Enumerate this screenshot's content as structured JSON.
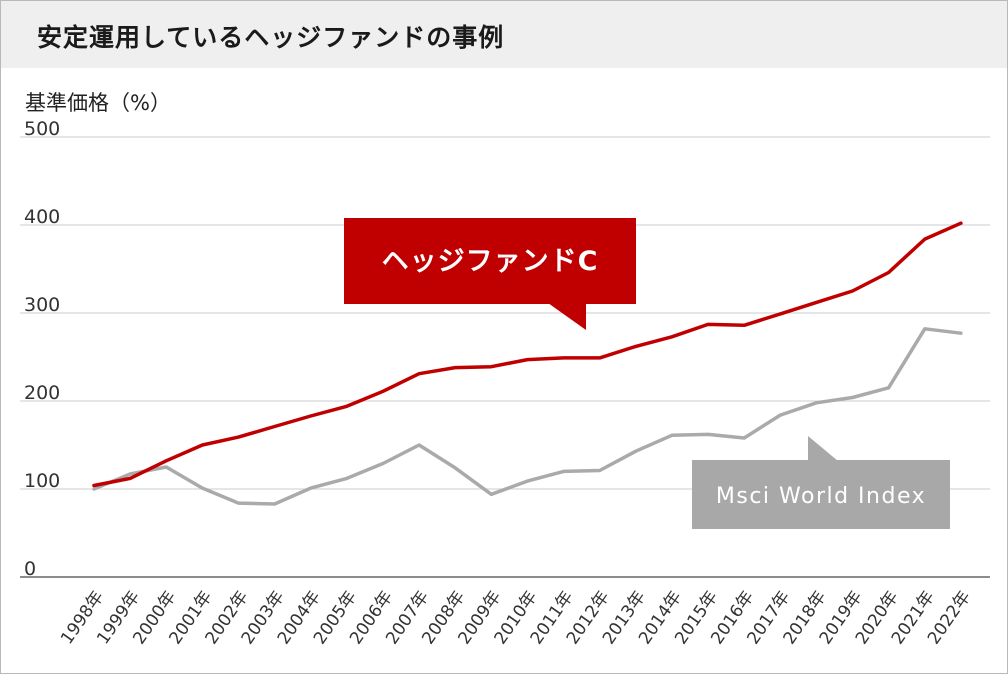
{
  "title": "安定運用しているヘッジファンドの事例",
  "colors": {
    "hedge_fund": "#c00000",
    "msci": "#aaaaaa",
    "grid": "#d6d6d6",
    "title_bg": "#efefef"
  },
  "chart_data": {
    "type": "line",
    "ylabel": "基準価格（%）",
    "xlabel": "",
    "ylim": [
      0,
      500
    ],
    "yticks": [
      "0",
      "100",
      "200",
      "300",
      "400",
      "500"
    ],
    "grid": true,
    "categories": [
      "1998年",
      "1999年",
      "2000年",
      "2001年",
      "2002年",
      "2003年",
      "2004年",
      "2005年",
      "2006年",
      "2007年",
      "2008年",
      "2009年",
      "2010年",
      "2011年",
      "2012年",
      "2013年",
      "2014年",
      "2015年",
      "2016年",
      "2017年",
      "2018年",
      "2019年",
      "2020年",
      "2021年",
      "2022年"
    ],
    "series": [
      {
        "name": "ヘッジファンドC",
        "color": "#c00000",
        "values": [
          104,
          112,
          132,
          150,
          159,
          171,
          183,
          194,
          211,
          231,
          238,
          239,
          247,
          249,
          249,
          262,
          273,
          287,
          286,
          299,
          312,
          325,
          346,
          384,
          402
        ]
      },
      {
        "name": "Msci World Index",
        "color": "#aaaaaa",
        "values": [
          100,
          117,
          125,
          101,
          84,
          83,
          101,
          112,
          129,
          150,
          124,
          94,
          109,
          120,
          121,
          143,
          161,
          162,
          158,
          184,
          198,
          204,
          215,
          282,
          277
        ]
      }
    ]
  }
}
